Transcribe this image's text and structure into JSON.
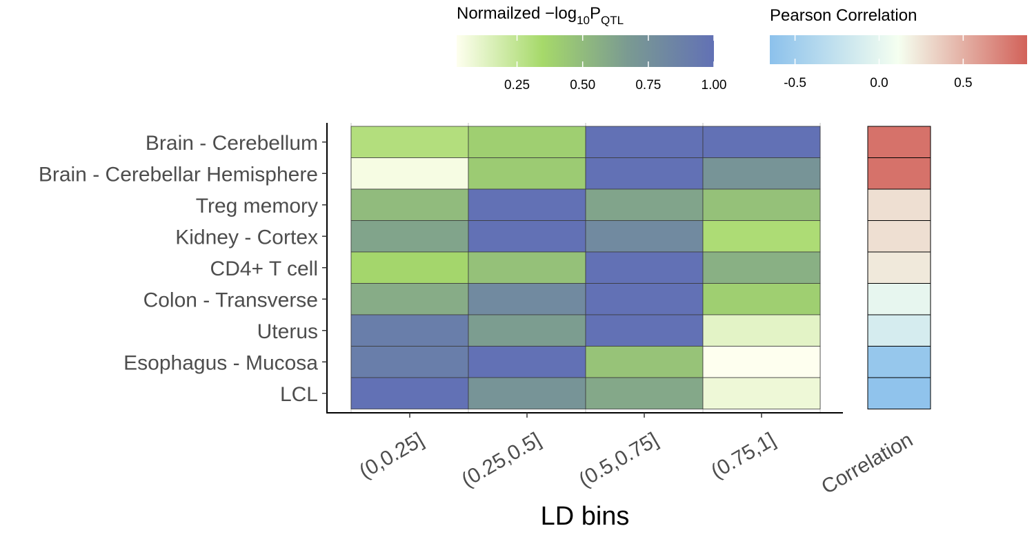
{
  "chart_data": {
    "type": "heatmap",
    "xlabel": "LD bins",
    "ylabel": "",
    "x_categories": [
      "(0,0.25]",
      "(0.25,0.5]",
      "(0.5,0.75]",
      "(0.75,1]"
    ],
    "y_categories": [
      "Brain - Cerebellum",
      "Brain - Cerebellar Hemisphere",
      "Treg memory",
      "Kidney - Cortex",
      "CD4+ T cell",
      "Colon - Transverse",
      "Uterus",
      "Esophagus - Mucosa",
      "LCL"
    ],
    "values": [
      [
        0.3,
        0.4,
        1.0,
        1.0
      ],
      [
        0.05,
        0.42,
        1.0,
        0.72
      ],
      [
        0.5,
        1.0,
        0.62,
        0.47
      ],
      [
        0.62,
        1.0,
        0.8,
        0.32
      ],
      [
        0.36,
        0.47,
        1.0,
        0.56
      ],
      [
        0.58,
        0.8,
        1.0,
        0.4
      ],
      [
        0.9,
        0.66,
        1.0,
        0.12
      ],
      [
        0.9,
        1.0,
        0.46,
        0.02
      ],
      [
        1.0,
        0.72,
        0.6,
        0.08
      ]
    ],
    "value_legend": {
      "title_main": "Normailzed  −log",
      "title_sub": "10",
      "title_P": "P",
      "title_P_sub": "QTL",
      "range": [
        0.02,
        1.0
      ],
      "ticks": [
        0.25,
        0.5,
        0.75,
        1.0
      ],
      "tick_labels": [
        "0.25",
        "0.50",
        "0.75",
        "1.00"
      ],
      "colors": [
        "#feffef",
        "#a6d96a",
        "#7a9a92",
        "#6271b5"
      ]
    },
    "correlation_column": {
      "label": "Correlation",
      "values": [
        0.8,
        0.8,
        0.27,
        0.27,
        0.22,
        0.01,
        -0.12,
        -0.58,
        -0.62
      ]
    },
    "correlation_legend": {
      "title": "Pearson Correlation",
      "range": [
        -0.65,
        0.88
      ],
      "ticks": [
        -0.5,
        0.0,
        0.5
      ],
      "tick_labels": [
        "-0.5",
        "0.0",
        "0.5"
      ],
      "colors": [
        "#8cc1ec",
        "#f5fff0",
        "#d2625a"
      ]
    }
  }
}
